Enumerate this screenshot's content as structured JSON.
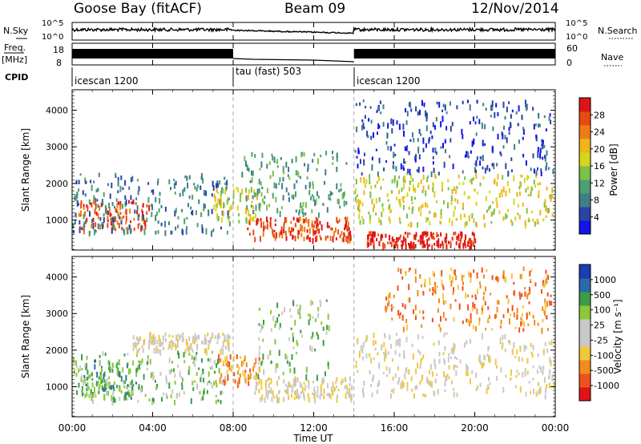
{
  "header": {
    "station": "Goose Bay (fitACF)",
    "beam": "Beam 09",
    "date": "12/Nov/2014"
  },
  "side_labels": {
    "nsky": "N.Sky",
    "nsearch": "N.Search",
    "freq": "Freq.",
    "freq_unit": "[MHz]",
    "nave": "Nave",
    "cpid": "CPID"
  },
  "noise_panel": {
    "left_ticks": [
      "10^5",
      "10^0"
    ],
    "right_ticks": [
      "10^5",
      "10^0"
    ]
  },
  "freq_panel": {
    "left_ticks": [
      "18",
      "8"
    ],
    "right_ticks": [
      "60",
      "0"
    ]
  },
  "cpid_segments": [
    {
      "label": "icescan 1200",
      "start": "00:00",
      "end": "08:00"
    },
    {
      "label": "tau (fast) 503",
      "start": "08:00",
      "end": "14:00"
    },
    {
      "label": "icescan 1200",
      "start": "14:00",
      "end": "24:00"
    }
  ],
  "colors": {
    "power": [
      "#1414e6",
      "#2a44a6",
      "#3f7f8a",
      "#4aa070",
      "#7ac24a",
      "#d6d61c",
      "#f0b41c",
      "#f07d14",
      "#e84a14",
      "#e01414"
    ],
    "velocity": [
      "#e01414",
      "#f0501e",
      "#f08c1e",
      "#f0c83c",
      "#c8c8c8",
      "#c8c8c8",
      "#8cc83c",
      "#3c9c46",
      "#2a6aa6",
      "#1a3cb4"
    ]
  },
  "chart_data": [
    {
      "type": "heatmap",
      "name": "power",
      "ylabel": "Slant Range [km]",
      "yticks": [
        "1000",
        "2000",
        "3000",
        "4000"
      ],
      "ylim": [
        180,
        4560
      ],
      "colorbar_label": "Power [dB]",
      "colorbar_ticks": [
        "4",
        "8",
        "12",
        "16",
        "20",
        "24",
        "28"
      ],
      "regions": [
        {
          "t": [
            0.3,
            3.8
          ],
          "r": [
            750,
            1600
          ],
          "level": 8
        },
        {
          "t": [
            0.0,
            7.8
          ],
          "r": [
            700,
            2300
          ],
          "level": 2
        },
        {
          "t": [
            7.0,
            9.2
          ],
          "r": [
            1000,
            1900
          ],
          "level": 5
        },
        {
          "t": [
            8.6,
            13.8
          ],
          "r": [
            500,
            1100
          ],
          "level": 8
        },
        {
          "t": [
            8.4,
            13.6
          ],
          "r": [
            1200,
            2900
          ],
          "level": 3
        },
        {
          "t": [
            14.0,
            23.9
          ],
          "r": [
            900,
            2300
          ],
          "level": 5
        },
        {
          "t": [
            14.6,
            20.0
          ],
          "r": [
            300,
            700
          ],
          "level": 9
        },
        {
          "t": [
            14.0,
            23.9
          ],
          "r": [
            2300,
            4300
          ],
          "level": 1
        }
      ]
    },
    {
      "type": "heatmap",
      "name": "velocity",
      "ylabel": "Slant Range [km]",
      "yticks": [
        "1000",
        "2000",
        "3000",
        "4000"
      ],
      "ylim": [
        180,
        4560
      ],
      "colorbar_label": "Velocity [m s⁻¹]",
      "colorbar_ticks": [
        "1000",
        "500",
        "100",
        "25",
        "-25",
        "-100",
        "-500",
        "-1000"
      ],
      "regions": [
        {
          "t": [
            0.4,
            3.2
          ],
          "r": [
            700,
            1800
          ],
          "level": 7
        },
        {
          "t": [
            0.0,
            7.6
          ],
          "r": [
            600,
            2000
          ],
          "level": 6
        },
        {
          "t": [
            3.0,
            7.8
          ],
          "r": [
            2000,
            2500
          ],
          "level": 4
        },
        {
          "t": [
            7.2,
            9.3
          ],
          "r": [
            1100,
            1900
          ],
          "level": 2
        },
        {
          "t": [
            9.0,
            13.9
          ],
          "r": [
            700,
            1300
          ],
          "level": 4
        },
        {
          "t": [
            9.2,
            12.8
          ],
          "r": [
            1300,
            3400
          ],
          "level": 6
        },
        {
          "t": [
            14.0,
            23.9
          ],
          "r": [
            800,
            2500
          ],
          "level": 4
        },
        {
          "t": [
            15.5,
            23.8
          ],
          "r": [
            2600,
            4300
          ],
          "level": 2
        }
      ]
    }
  ],
  "xaxis": {
    "ticks": [
      "00:00",
      "04:00",
      "08:00",
      "12:00",
      "16:00",
      "20:00",
      "00:00"
    ],
    "label": "Time UT"
  }
}
